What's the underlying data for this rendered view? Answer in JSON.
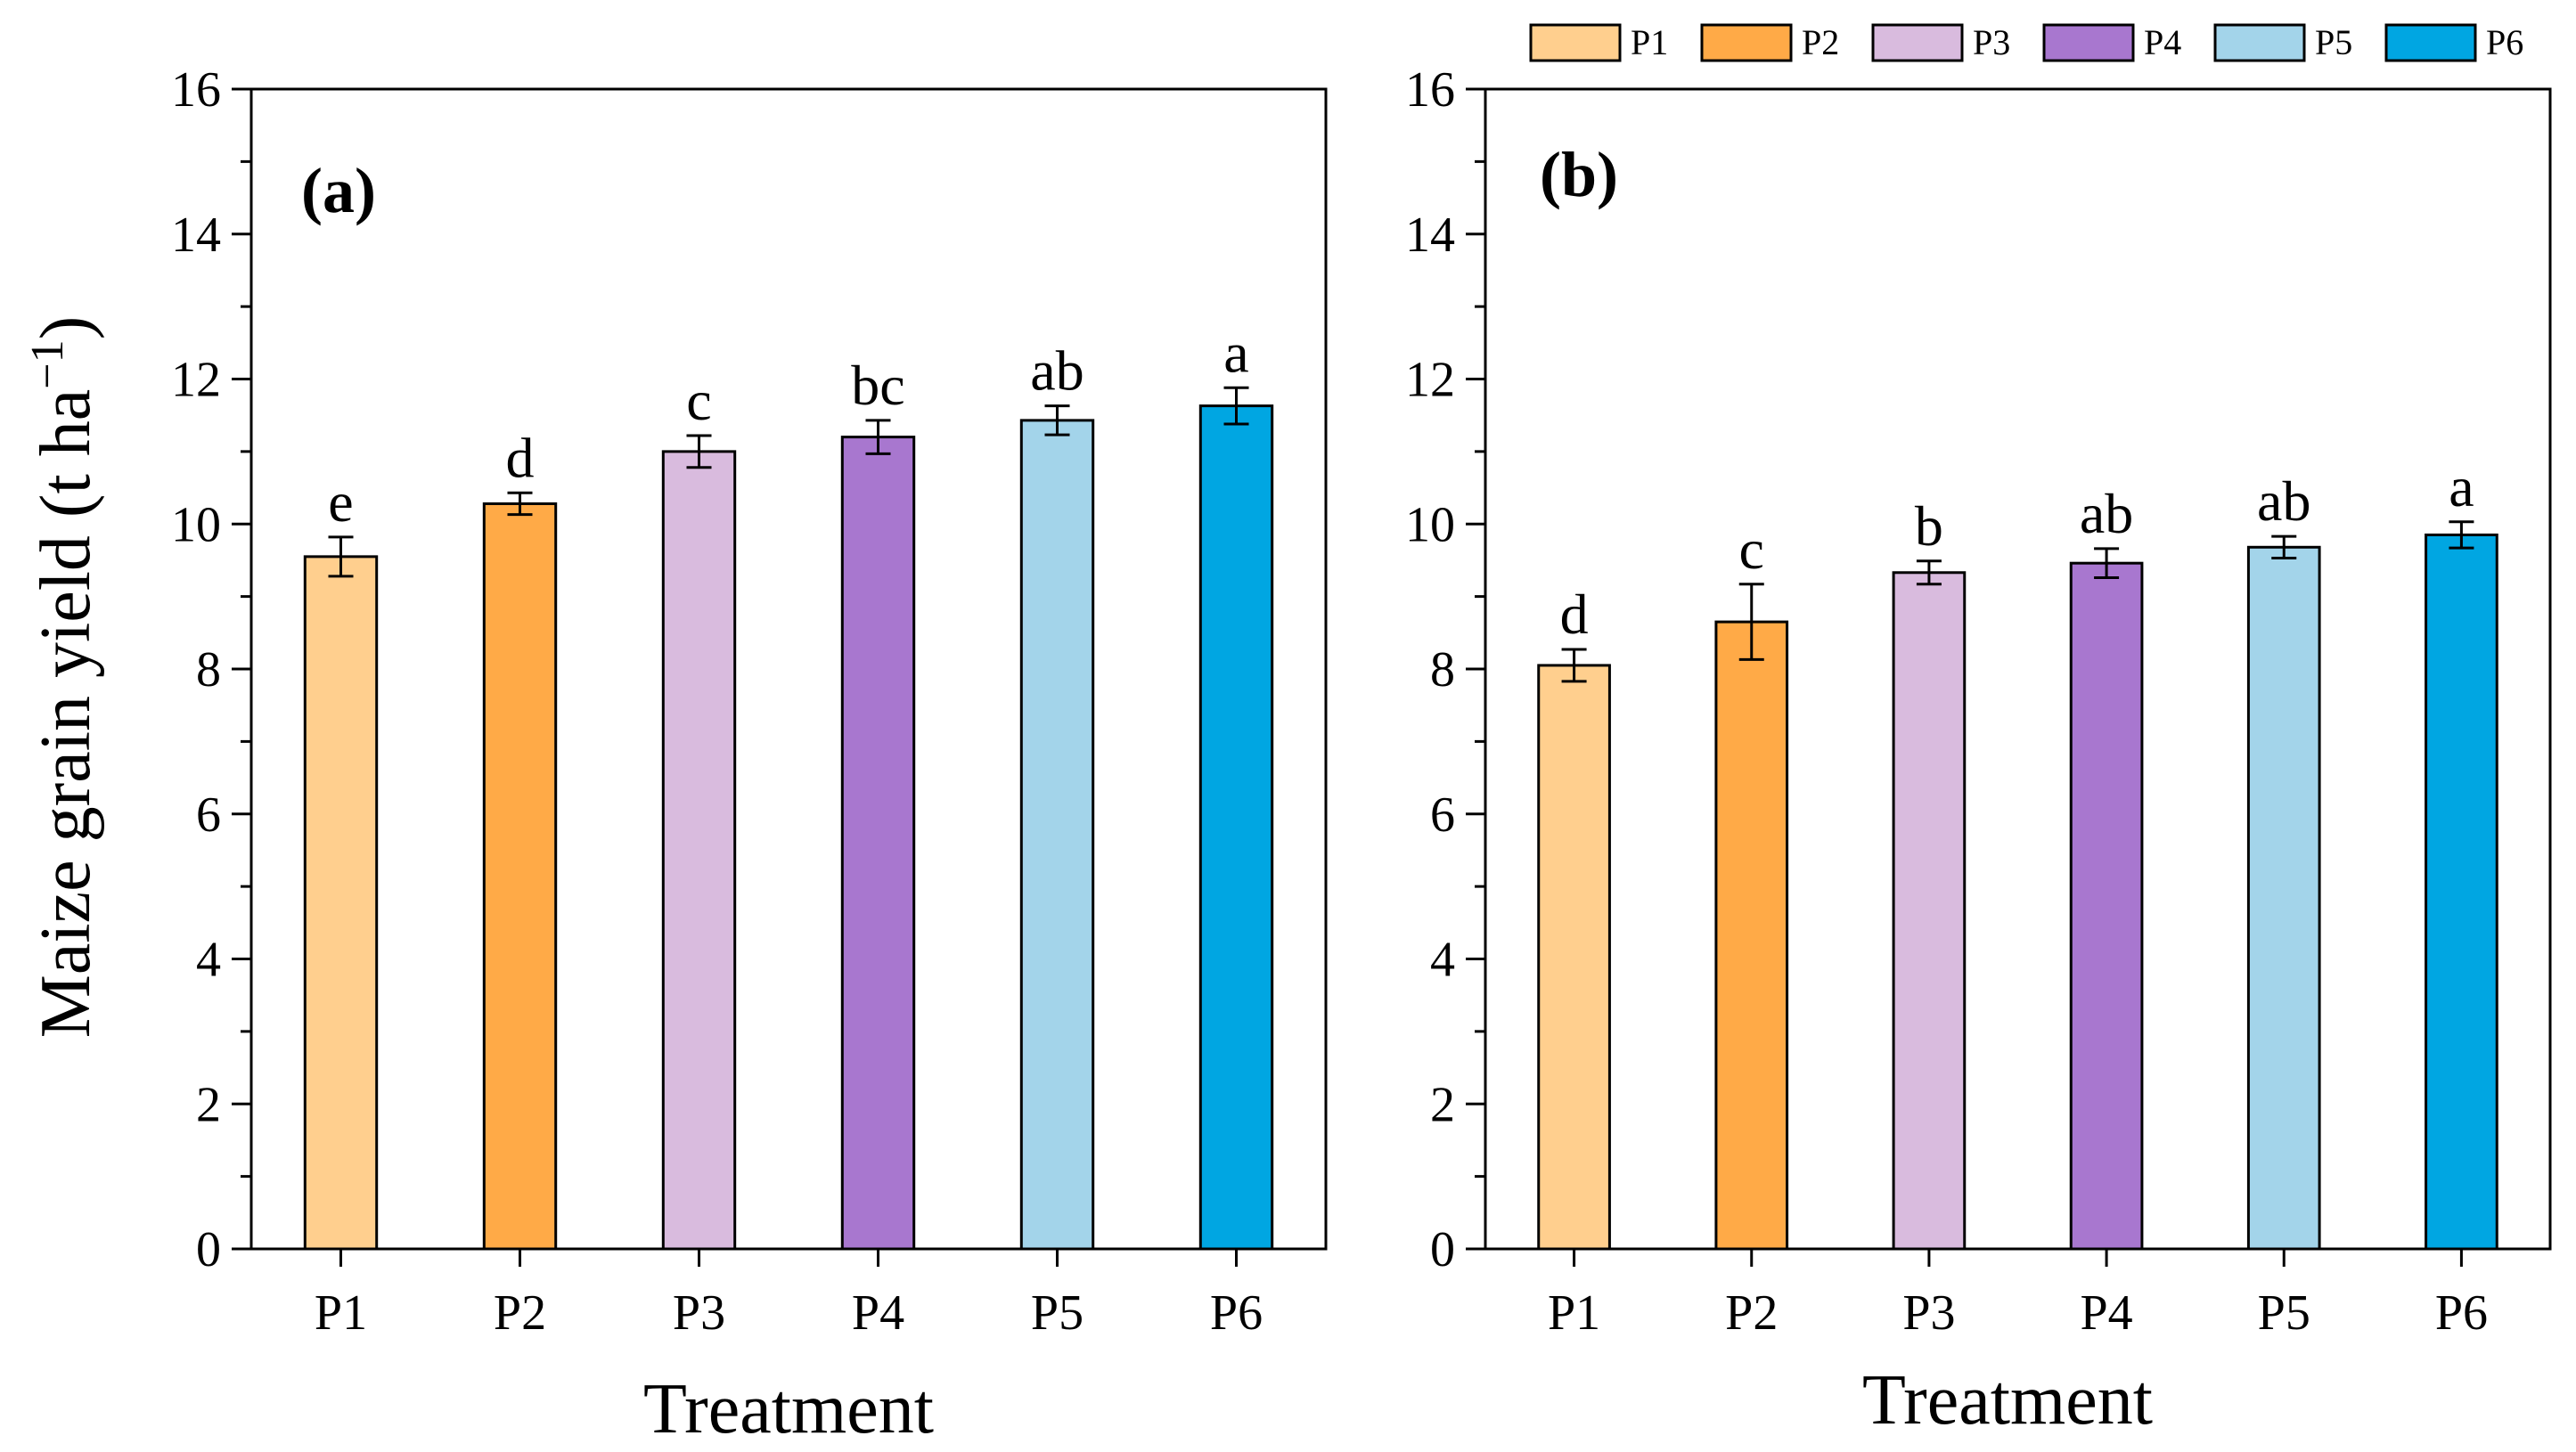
{
  "chart_data": [
    {
      "type": "bar",
      "panel_label": "(a)",
      "categories": [
        "P1",
        "P2",
        "P3",
        "P4",
        "P5",
        "P6"
      ],
      "values": [
        9.55,
        10.28,
        11.0,
        11.2,
        11.43,
        11.63
      ],
      "errors": [
        0.27,
        0.15,
        0.22,
        0.23,
        0.2,
        0.25
      ],
      "significance": [
        "e",
        "d",
        "c",
        "bc",
        "ab",
        "a"
      ],
      "xlabel": "Treatment",
      "ylabel": "Maize grain yield (t ha",
      "ylabel_sup": "−1",
      "ylabel_close": ")",
      "ylim": [
        0,
        16
      ],
      "yticks": [
        "0",
        "2",
        "4",
        "6",
        "8",
        "10",
        "12",
        "14",
        "16"
      ]
    },
    {
      "type": "bar",
      "panel_label": "(b)",
      "categories": [
        "P1",
        "P2",
        "P3",
        "P4",
        "P5",
        "P6"
      ],
      "values": [
        8.05,
        8.65,
        9.33,
        9.46,
        9.68,
        9.85
      ],
      "errors": [
        0.22,
        0.52,
        0.16,
        0.2,
        0.15,
        0.18
      ],
      "significance": [
        "d",
        "c",
        "b",
        "ab",
        "ab",
        "a"
      ],
      "xlabel": "Treatment",
      "ylim": [
        0,
        16
      ],
      "yticks": [
        "0",
        "2",
        "4",
        "6",
        "8",
        "10",
        "12",
        "14",
        "16"
      ]
    }
  ],
  "legend": {
    "entries": [
      "P1",
      "P2",
      "P3",
      "P4",
      "P5",
      "P6"
    ]
  },
  "colors": {
    "P1": "#FFCF8E",
    "P2": "#FFAA47",
    "P3": "#D9BBDE",
    "P4": "#A877CF",
    "P5": "#A3D4EA",
    "P6": "#00A6E2",
    "stroke": "#000000"
  }
}
